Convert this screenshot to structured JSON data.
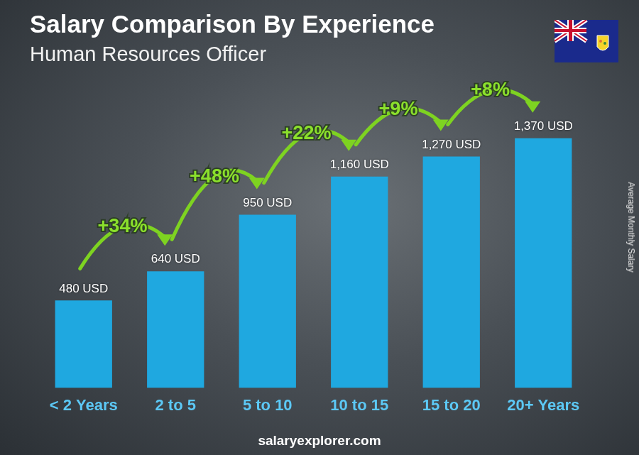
{
  "chart_data": {
    "type": "bar",
    "title": "Salary Comparison By Experience",
    "subtitle": "Human Resources Officer",
    "ylabel": "Average Monthly Salary",
    "categories": [
      "< 2 Years",
      "2 to 5",
      "5 to 10",
      "10 to 15",
      "15 to 20",
      "20+ Years"
    ],
    "values": [
      480,
      640,
      950,
      1160,
      1270,
      1370
    ],
    "value_labels": [
      "480 USD",
      "640 USD",
      "950 USD",
      "1,160 USD",
      "1,270 USD",
      "1,370 USD"
    ],
    "annotations": [
      "+34%",
      "+48%",
      "+22%",
      "+9%",
      "+8%"
    ],
    "footer": "salaryexplorer.com",
    "color": "#1fa8e0",
    "ylim": [
      0,
      1700
    ],
    "grid": false,
    "data_labels": true,
    "tick_labels": "x"
  }
}
